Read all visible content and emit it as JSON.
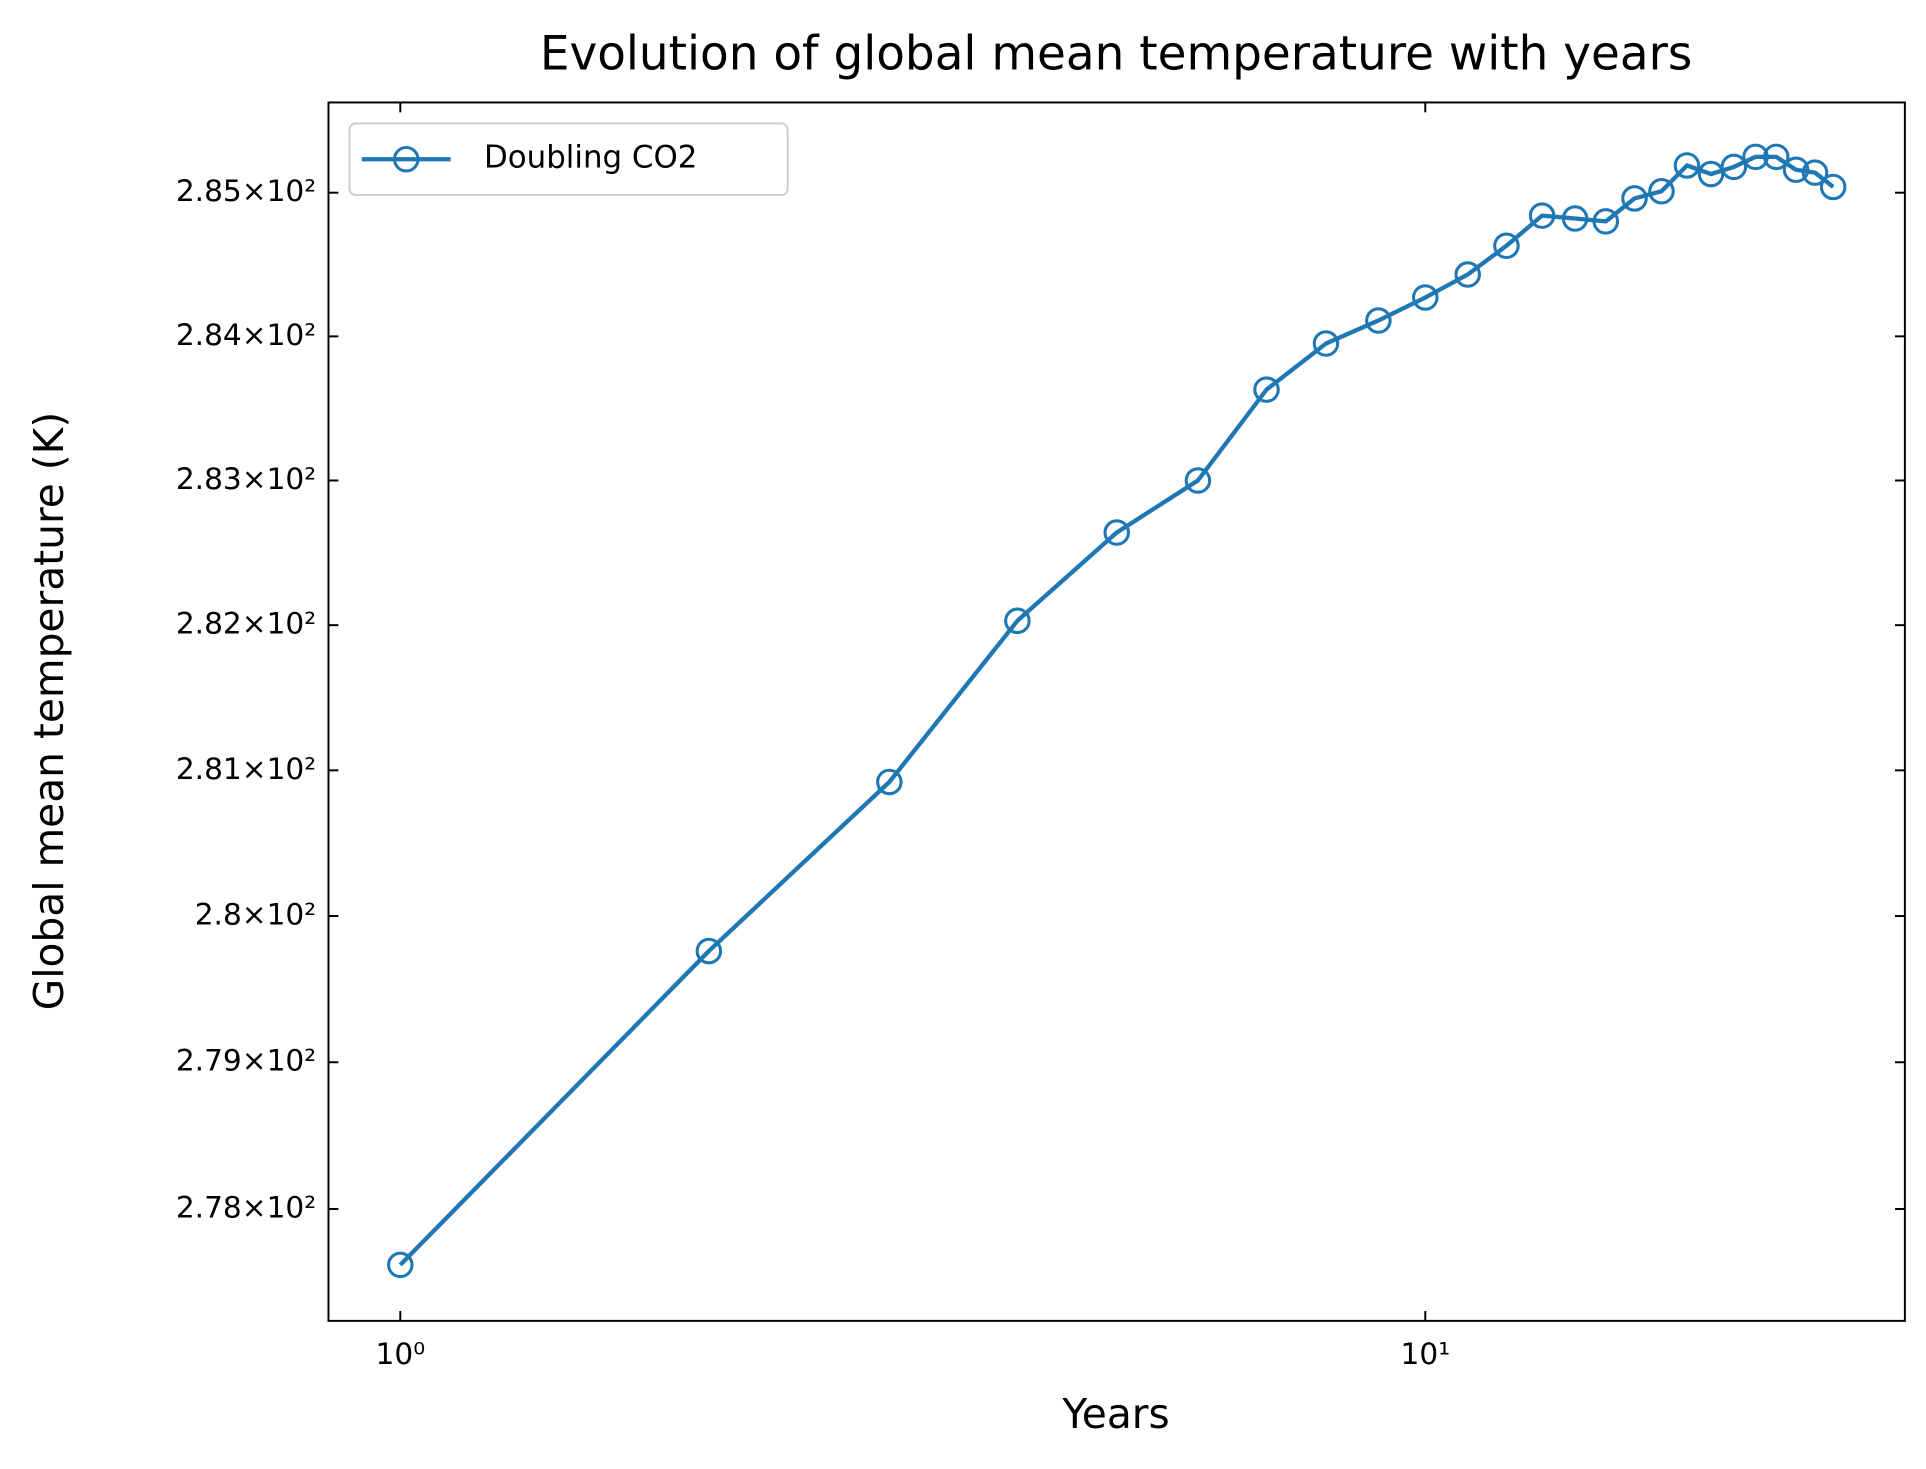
{
  "chart_data": {
    "type": "line",
    "title": "Evolution of global mean temperature with years",
    "xlabel": "Years",
    "ylabel": "Global mean temperature (K)",
    "x": [
      1,
      2,
      3,
      4,
      5,
      6,
      7,
      8,
      9,
      10,
      11,
      12,
      13,
      14,
      15,
      16,
      17,
      18,
      19,
      20,
      21,
      22,
      23,
      24,
      25
    ],
    "series": [
      {
        "name": "Doubling CO2",
        "color": "#1f77b4",
        "values": [
          277.62,
          279.76,
          280.92,
          282.03,
          282.64,
          283.0,
          283.63,
          283.95,
          284.11,
          284.27,
          284.43,
          284.63,
          284.84,
          284.82,
          284.8,
          284.96,
          285.01,
          285.19,
          285.13,
          285.18,
          285.25,
          285.25,
          285.16,
          285.14,
          285.04
        ]
      }
    ],
    "xscale": "log",
    "yscale": "log",
    "xlim": [
      0.851,
      29.37
    ],
    "ylim": [
      277.24,
      285.63
    ],
    "xticks": [
      {
        "value": 1,
        "label": "10⁰"
      },
      {
        "value": 10,
        "label": "10¹"
      }
    ],
    "yticks": [
      {
        "value": 278,
        "label": "2.78×10²"
      },
      {
        "value": 279,
        "label": "2.79×10²"
      },
      {
        "value": 280,
        "label": "2.8×10²"
      },
      {
        "value": 281,
        "label": "2.81×10²"
      },
      {
        "value": 282,
        "label": "2.82×10²"
      },
      {
        "value": 283,
        "label": "2.83×10²"
      },
      {
        "value": 284,
        "label": "2.84×10²"
      },
      {
        "value": 285,
        "label": "2.85×10²"
      }
    ],
    "grid": false,
    "legend": "upper left"
  }
}
